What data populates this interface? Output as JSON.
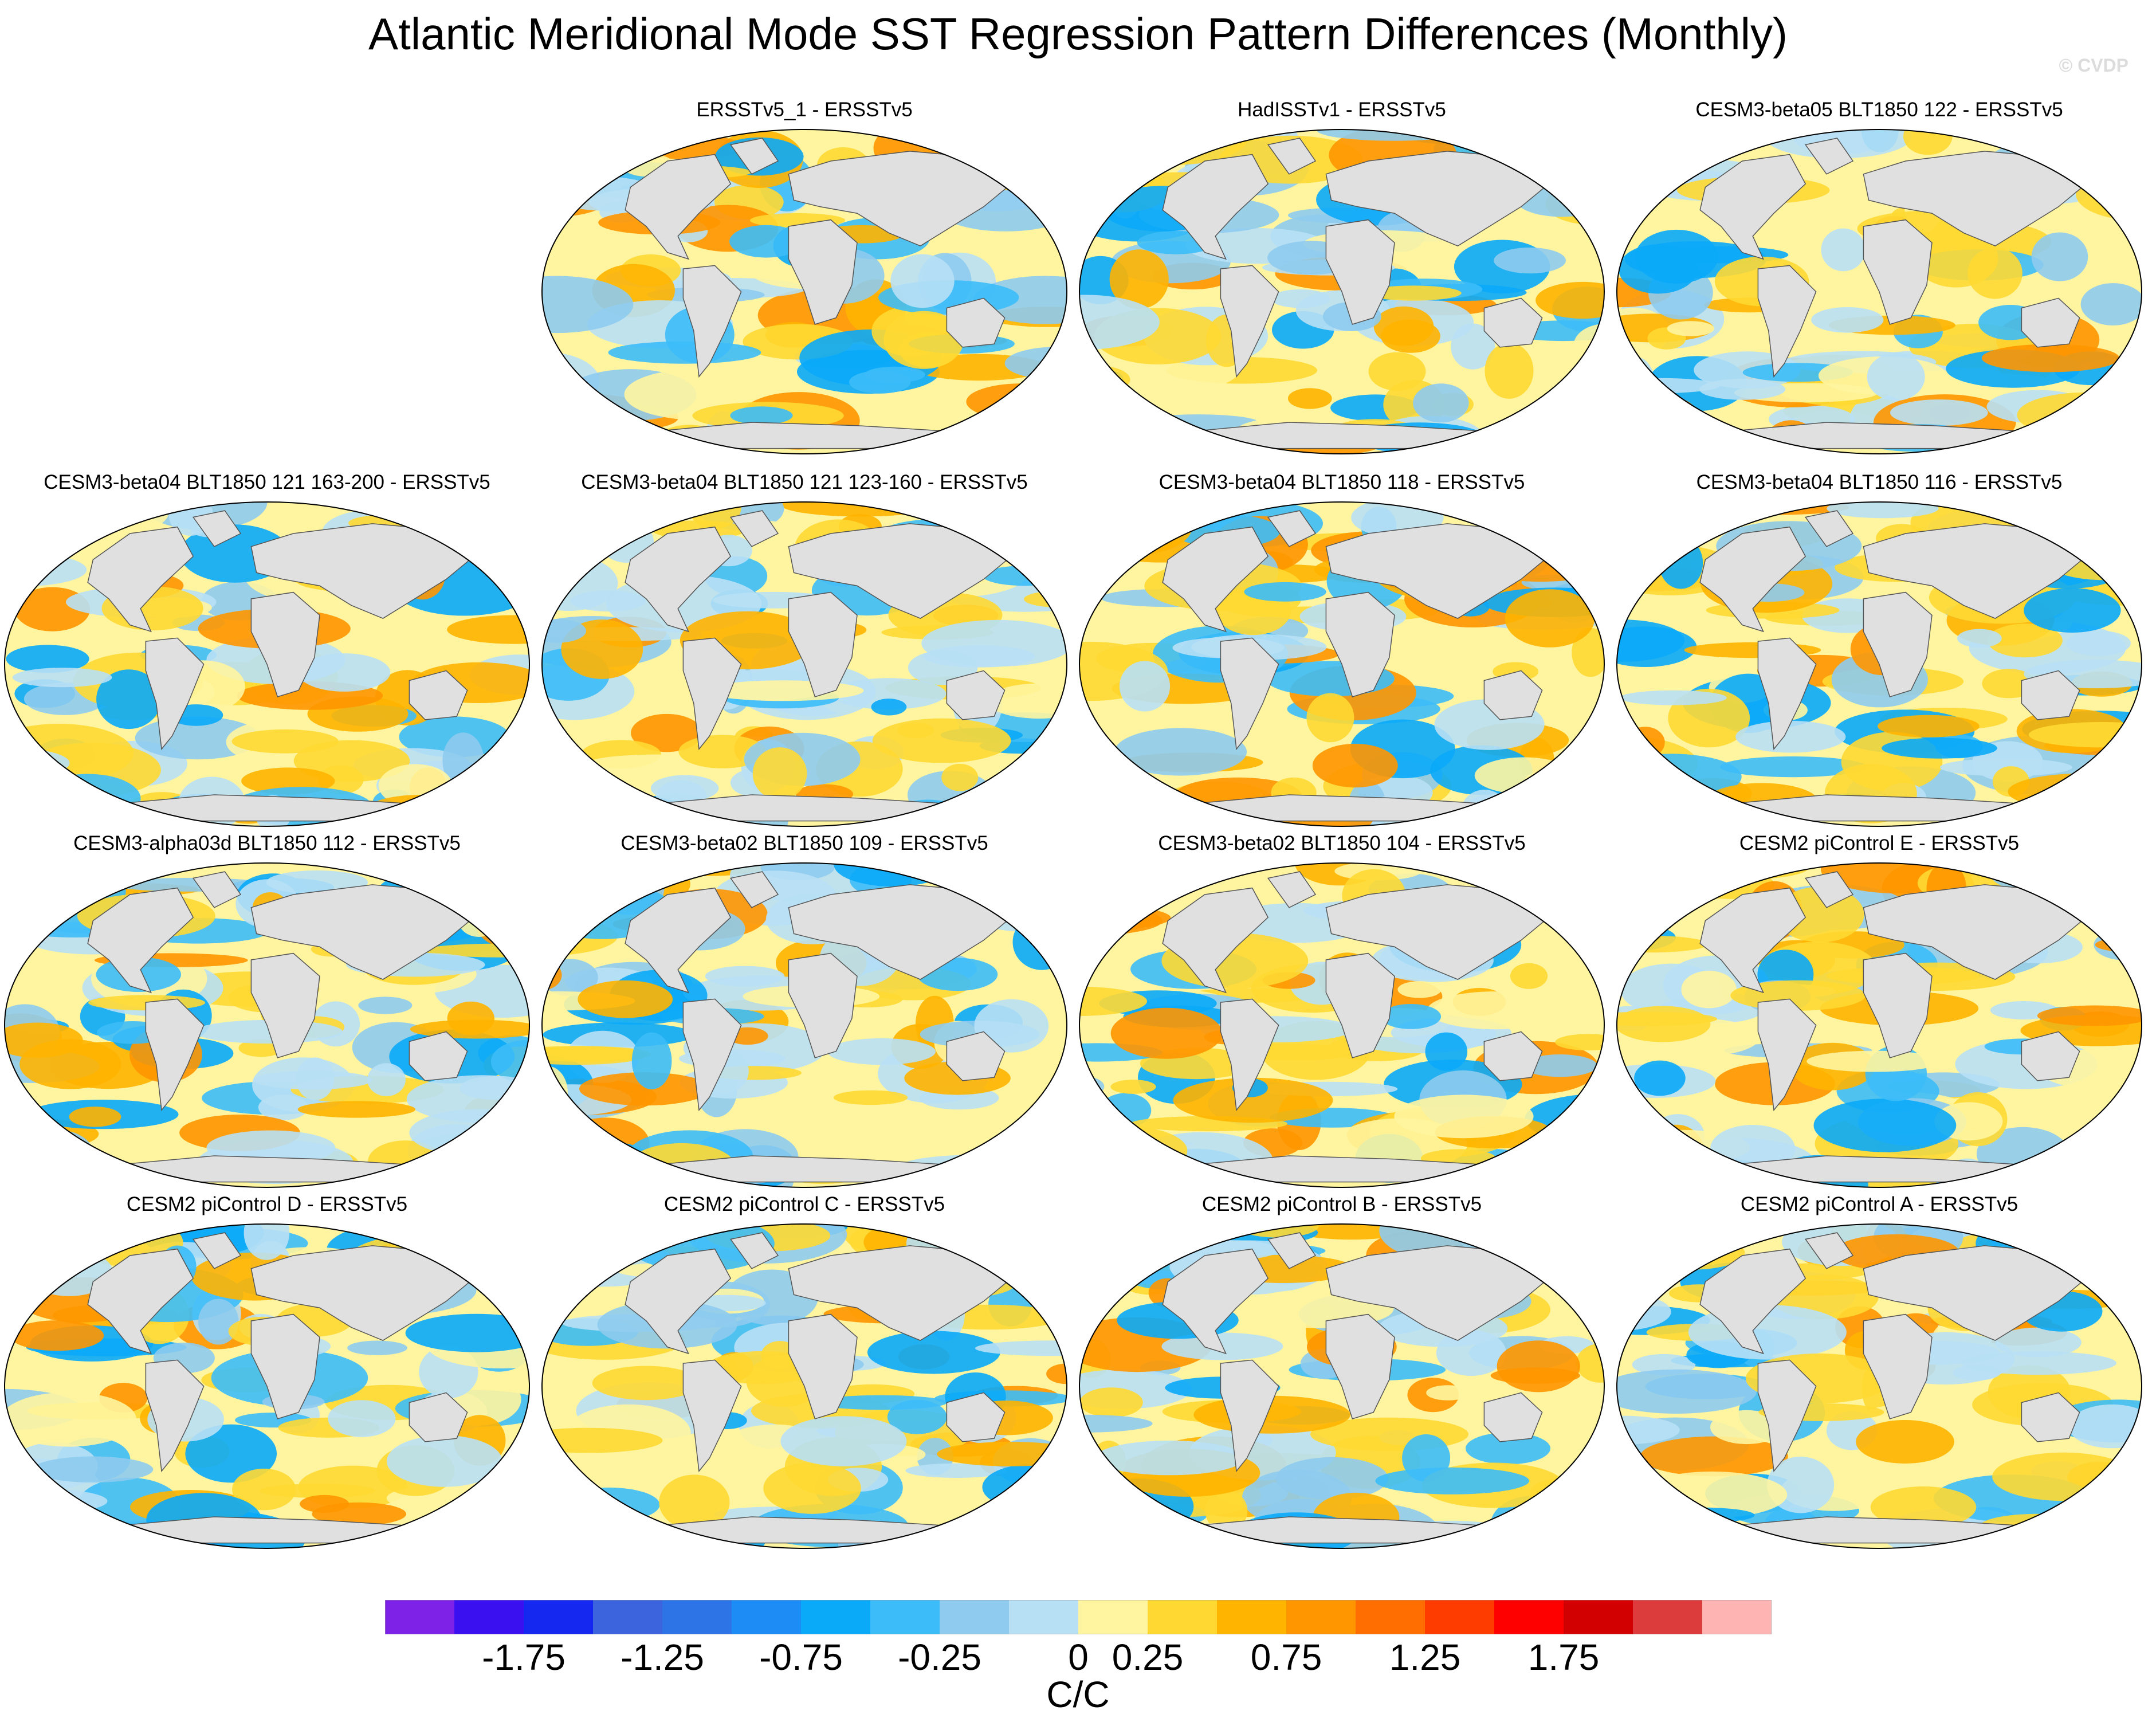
{
  "figure": {
    "title": "Atlantic Meridional Mode SST Regression Pattern Differences (Monthly)",
    "watermark": "© CVDP"
  },
  "panels": [
    {
      "title": "ERSSTv5_1 - ERSSTv5"
    },
    {
      "title": "HadISSTv1 - ERSSTv5"
    },
    {
      "title": "CESM3-beta05 BLT1850 122 - ERSSTv5"
    },
    {
      "title": "CESM3-beta04 BLT1850 121 163-200 - ERSSTv5"
    },
    {
      "title": "CESM3-beta04 BLT1850 121 123-160 - ERSSTv5"
    },
    {
      "title": "CESM3-beta04 BLT1850 118 - ERSSTv5"
    },
    {
      "title": "CESM3-beta04 BLT1850 116 - ERSSTv5"
    },
    {
      "title": "CESM3-alpha03d BLT1850 112 - ERSSTv5"
    },
    {
      "title": "CESM3-beta02 BLT1850 109 - ERSSTv5"
    },
    {
      "title": "CESM3-beta02 BLT1850 104 - ERSSTv5"
    },
    {
      "title": "CESM2 piControl E - ERSSTv5"
    },
    {
      "title": "CESM2 piControl D - ERSSTv5"
    },
    {
      "title": "CESM2 piControl C - ERSSTv5"
    },
    {
      "title": "CESM2 piControl B - ERSSTv5"
    },
    {
      "title": "CESM2 piControl A - ERSSTv5"
    }
  ],
  "chart_data": {
    "type": "heatmap",
    "title": "Atlantic Meridional Mode SST Regression Pattern Differences (Monthly)",
    "projection": "Robinson (global)",
    "panels": [
      "ERSSTv5_1 - ERSSTv5",
      "HadISSTv1 - ERSSTv5",
      "CESM3-beta05 BLT1850 122 - ERSSTv5",
      "CESM3-beta04 BLT1850 121 163-200 - ERSSTv5",
      "CESM3-beta04 BLT1850 121 123-160 - ERSSTv5",
      "CESM3-beta04 BLT1850 118 - ERSSTv5",
      "CESM3-beta04 BLT1850 116 - ERSSTv5",
      "CESM3-alpha03d BLT1850 112 - ERSSTv5",
      "CESM3-beta02 BLT1850 109 - ERSSTv5",
      "CESM3-beta02 BLT1850 104 - ERSSTv5",
      "CESM2 piControl E - ERSSTv5",
      "CESM2 piControl D - ERSSTv5",
      "CESM2 piControl C - ERSSTv5",
      "CESM2 piControl B - ERSSTv5",
      "CESM2 piControl A - ERSSTv5"
    ],
    "colorbar": {
      "units": "C/C",
      "levels": [
        -2.0,
        -1.75,
        -1.5,
        -1.25,
        -1.0,
        -0.75,
        -0.5,
        -0.25,
        0,
        0.25,
        0.5,
        0.75,
        1.0,
        1.25,
        1.5,
        1.75,
        2.0
      ],
      "colors": [
        "#7e22e8",
        "#3a10f0",
        "#1428f0",
        "#3c64dc",
        "#2d74e6",
        "#1e8cf5",
        "#0aaaf8",
        "#3cbcf8",
        "#8ecbee",
        "#b8e0f5",
        "#fff5a0",
        "#ffd932",
        "#ffb400",
        "#ff9600",
        "#ff6e00",
        "#ff3c00",
        "#ff0000",
        "#d20000",
        "#dc3c3c",
        "#ffb4b4"
      ],
      "tick_labels": [
        "-1.75",
        "-1.25",
        "-0.75",
        "-0.25",
        "0",
        "0.25",
        "0.75",
        "1.25",
        "1.75"
      ],
      "tick_boundary_index": [
        2,
        4,
        6,
        8,
        10,
        11,
        13,
        15,
        17
      ]
    }
  }
}
